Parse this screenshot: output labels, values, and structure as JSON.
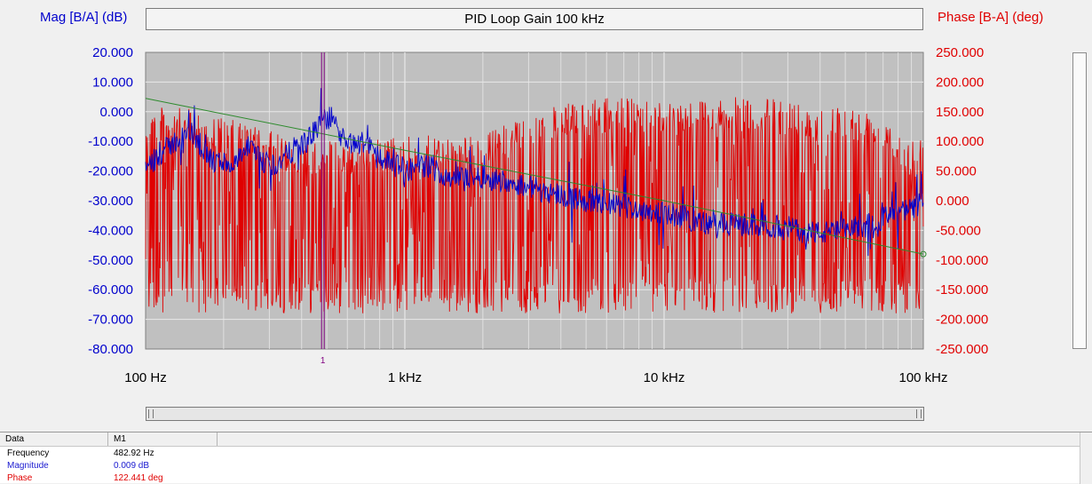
{
  "chart_data": {
    "type": "line",
    "title": "PID Loop Gain 100 kHz",
    "ylabel": "Mag [B/A] (dB)",
    "y2label": "Phase [B-A] (deg)",
    "xscale": "log",
    "xlim": [
      100,
      100000
    ],
    "ylim": [
      -80,
      20
    ],
    "y2lim": [
      -250,
      250
    ],
    "grid": true,
    "x_ticks": [
      {
        "value": 100,
        "label": "100 Hz"
      },
      {
        "value": 1000,
        "label": "1 kHz"
      },
      {
        "value": 10000,
        "label": "10 kHz"
      },
      {
        "value": 100000,
        "label": "100 kHz"
      }
    ],
    "y_ticks": [
      "20.000",
      "10.000",
      "0.000",
      "-10.000",
      "-20.000",
      "-30.000",
      "-40.000",
      "-50.000",
      "-60.000",
      "-70.000",
      "-80.000"
    ],
    "y2_ticks": [
      "250.000",
      "200.000",
      "150.000",
      "100.000",
      "50.000",
      "0.000",
      "-50.000",
      "-100.000",
      "-150.000",
      "-200.000",
      "-250.000"
    ],
    "series": [
      {
        "color": "#0000cc",
        "axis": "left",
        "kind": "noisy",
        "x": [
          100,
          105,
          130,
          150,
          180,
          200,
          220,
          250,
          280,
          320,
          380,
          420,
          480,
          520,
          600,
          700,
          800,
          1000,
          1200,
          1500,
          2000,
          3000,
          4000,
          5000,
          7000,
          10000,
          15000,
          20000,
          30000,
          40000,
          50000,
          60000,
          70000,
          80000,
          90000,
          100000
        ],
        "y": [
          -18,
          -17,
          -10,
          -7,
          -17,
          -17,
          -18,
          -12,
          -17,
          -18,
          -12,
          -10,
          -3,
          -2,
          -12,
          -10,
          -15,
          -20,
          -18,
          -22,
          -22,
          -25,
          -28,
          -30,
          -32,
          -34,
          -38,
          -38,
          -39,
          -41,
          -40,
          -38,
          -36,
          -34,
          -33,
          -30
        ],
        "noise": 4
      },
      {
        "color": "#e00000",
        "axis": "right",
        "kind": "spiky",
        "x": [
          100,
          150,
          200,
          250,
          400,
          600,
          1000,
          2000,
          3000,
          5000,
          7000,
          10000,
          20000,
          30000,
          50000,
          70000,
          90000,
          100000
        ],
        "upper": [
          160,
          155,
          140,
          130,
          100,
          100,
          110,
          110,
          150,
          170,
          175,
          170,
          175,
          170,
          160,
          150,
          100,
          80
        ],
        "lower": [
          -190,
          -190,
          -190,
          -190,
          -190,
          -190,
          -190,
          -190,
          -190,
          -190,
          -190,
          -190,
          -190,
          -190,
          -190,
          -190,
          -190,
          -190
        ]
      },
      {
        "color": "#2e8b2e",
        "axis": "left",
        "kind": "line",
        "x": [
          100,
          1000,
          10000,
          100000
        ],
        "y": [
          4.5,
          -13,
          -30,
          -48
        ]
      }
    ],
    "markers": [
      {
        "label": "1",
        "x": 482.92,
        "color": "#800080"
      }
    ]
  },
  "table": {
    "headers": [
      "Data",
      "M1"
    ],
    "rows": [
      {
        "label": "Frequency",
        "value": "482.92 Hz",
        "color": "#000000"
      },
      {
        "label": "Magnitude",
        "value": "0.009 dB",
        "color": "#1a1ad0"
      },
      {
        "label": "Phase",
        "value": "122.441 deg",
        "color": "#e00000"
      }
    ]
  }
}
